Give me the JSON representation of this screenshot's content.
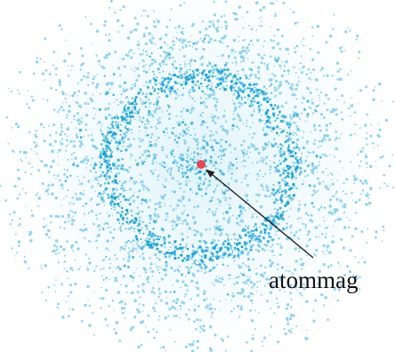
{
  "labels": {
    "nucleus": "atommag"
  }
}
